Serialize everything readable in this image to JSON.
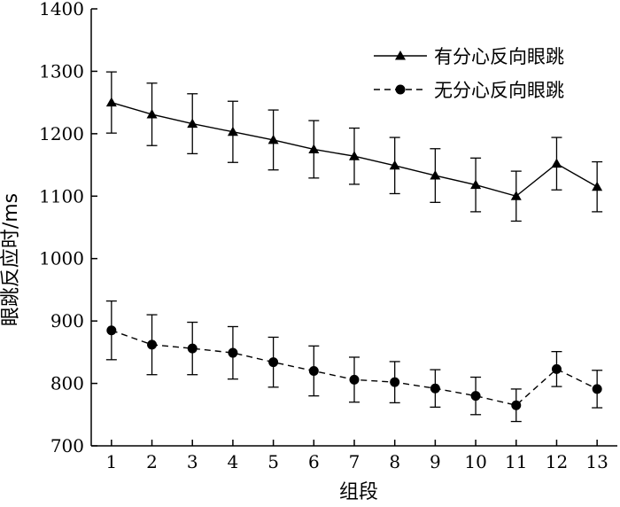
{
  "chart_data": {
    "type": "line",
    "title": "",
    "xlabel": "组段",
    "ylabel": "眼跳反应时/ms",
    "x": [
      1,
      2,
      3,
      4,
      5,
      6,
      7,
      8,
      9,
      10,
      11,
      12,
      13
    ],
    "xlim": [
      0.5,
      13.5
    ],
    "ylim": [
      700,
      1400
    ],
    "y_ticks": [
      700,
      800,
      900,
      1000,
      1100,
      1200,
      1300,
      1400
    ],
    "grid": false,
    "legend_position": "top-right",
    "series": [
      {
        "name": "有分心反向眼跳",
        "marker": "triangle",
        "line_style": "solid",
        "values": [
          1250,
          1231,
          1216,
          1203,
          1190,
          1175,
          1164,
          1149,
          1133,
          1118,
          1100,
          1152,
          1115
        ],
        "error": [
          49,
          50,
          48,
          49,
          48,
          46,
          45,
          45,
          43,
          43,
          40,
          42,
          40
        ]
      },
      {
        "name": "无分心反向眼跳",
        "marker": "circle",
        "line_style": "dashed",
        "values": [
          885,
          862,
          856,
          849,
          834,
          820,
          806,
          802,
          792,
          780,
          765,
          823,
          791
        ],
        "error": [
          47,
          48,
          42,
          42,
          40,
          40,
          36,
          33,
          30,
          30,
          26,
          28,
          30
        ]
      }
    ]
  }
}
